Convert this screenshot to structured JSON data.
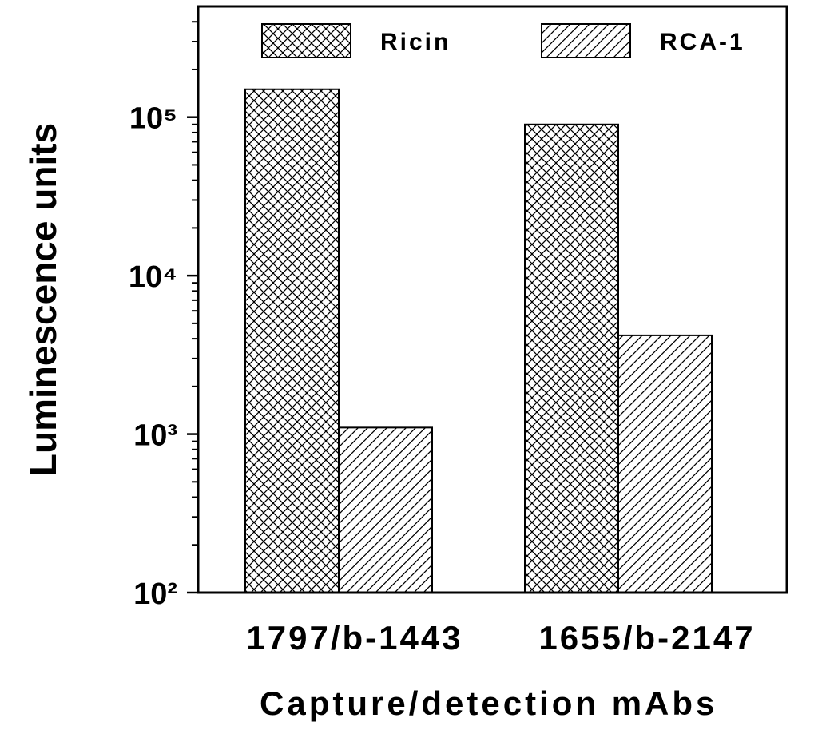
{
  "chart_data": {
    "type": "bar",
    "log_scale": true,
    "x_label": "Capture/detection mAbs",
    "y_label": "Luminescence units",
    "categories": [
      "1797/b-1443",
      "1655/b-2147"
    ],
    "series": [
      {
        "name": "Ricin",
        "color": "#000000",
        "pattern": "crosshatch",
        "values": [
          150000,
          90000
        ]
      },
      {
        "name": "RCA-1",
        "color": "#000000",
        "pattern": "diagonal",
        "values": [
          1100,
          4200
        ]
      }
    ],
    "ylim": [
      100,
      500000
    ],
    "yticks": [
      {
        "value": 100,
        "label": "10²"
      },
      {
        "value": 1000,
        "label": "10³"
      },
      {
        "value": 10000,
        "label": "10⁴"
      },
      {
        "value": 100000,
        "label": "10⁵"
      }
    ],
    "yminorticks": [
      200,
      300,
      400,
      500,
      600,
      700,
      800,
      900,
      2000,
      3000,
      4000,
      5000,
      6000,
      7000,
      8000,
      9000,
      20000,
      30000,
      40000,
      50000,
      60000,
      70000,
      80000,
      90000,
      200000,
      300000,
      400000
    ],
    "legend": "top"
  }
}
